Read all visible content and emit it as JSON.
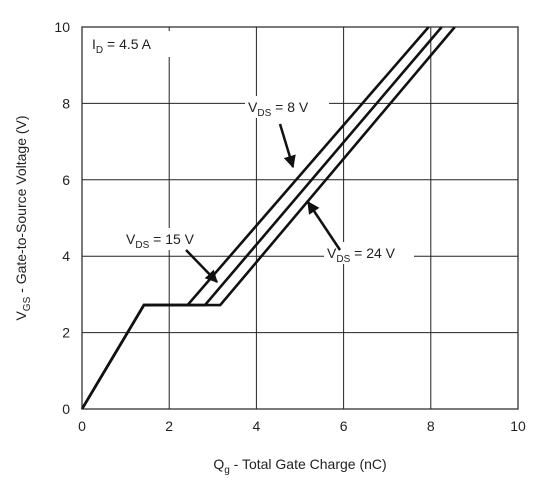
{
  "chart_data": {
    "type": "line",
    "title": "",
    "xlabel": {
      "main": "Q",
      "sub": "g",
      "rest": " - Total Gate Charge (nC)"
    },
    "ylabel": {
      "main": "V",
      "sub": "GS",
      "rest": " - Gate-to-Source Voltage (V)"
    },
    "xlim": [
      0,
      10
    ],
    "ylim": [
      0,
      10
    ],
    "xticks": [
      0,
      2,
      4,
      6,
      8,
      10
    ],
    "yticks": [
      0,
      2,
      4,
      6,
      8,
      10
    ],
    "grid": true,
    "condition": {
      "main": "I",
      "sub": "D",
      "rest": " = 4.5 A"
    },
    "series": [
      {
        "name": "8 V",
        "x": [
          0,
          1.42,
          2.42,
          7.95
        ],
        "y": [
          0,
          2.72,
          2.72,
          10
        ]
      },
      {
        "name": "15 V",
        "x": [
          0,
          1.42,
          2.82,
          8.25
        ],
        "y": [
          0,
          2.72,
          2.72,
          10
        ]
      },
      {
        "name": "24 V",
        "x": [
          0,
          1.42,
          3.17,
          8.55
        ],
        "y": [
          0,
          2.72,
          2.72,
          10
        ]
      }
    ],
    "annotations": [
      {
        "series": 0,
        "main": "V",
        "sub": "DS",
        "rest": " = 8 V"
      },
      {
        "series": 1,
        "main": "V",
        "sub": "DS",
        "rest": " = 15 V"
      },
      {
        "series": 2,
        "main": "V",
        "sub": "DS",
        "rest": " = 24 V"
      }
    ]
  }
}
